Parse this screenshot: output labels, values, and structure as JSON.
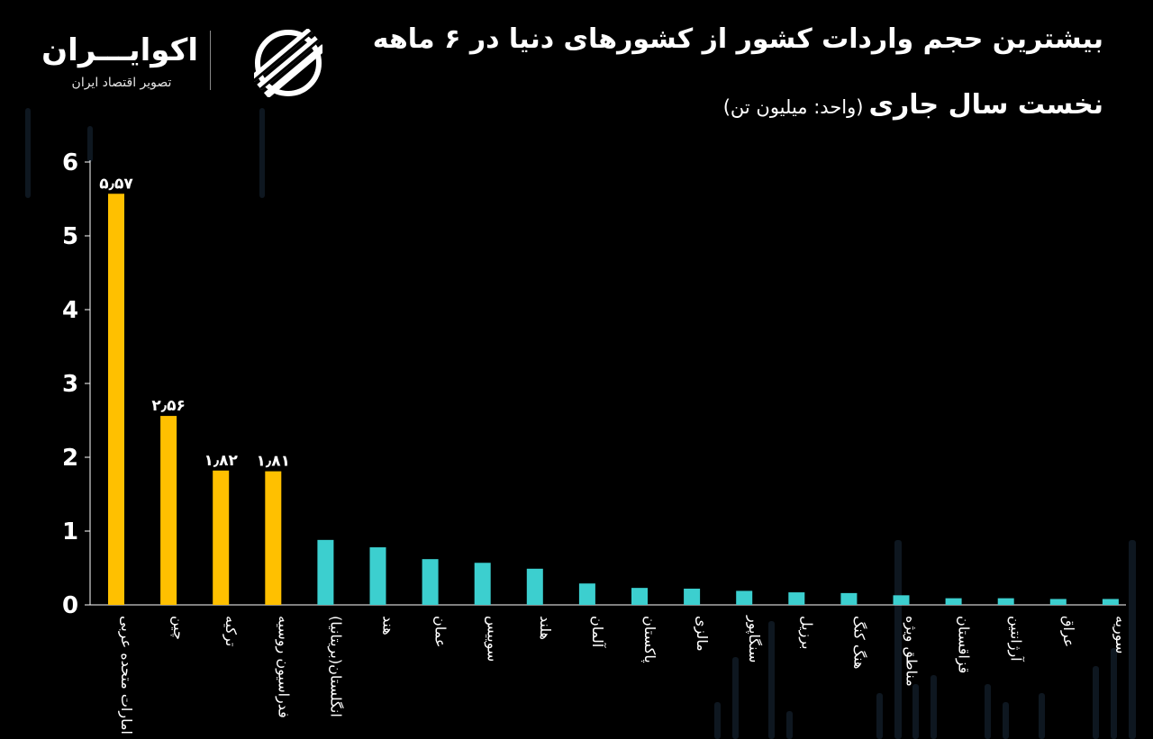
{
  "header": {
    "title": "بیشترین حجم واردات کشور از کشورهای دنیا در ۶ ماهه",
    "subtitle": "نخست سال جاری",
    "unit": "(واحد: میلیون تن)"
  },
  "logo": {
    "name": "اکوایـــران",
    "tagline": "تصویر اقتصاد ایران",
    "icon": "ekoiran-stripes-icon"
  },
  "colors": {
    "background": "#000000",
    "highlight_bar": "#FFC000",
    "regular_bar": "#3CCFCF",
    "axis": "#ffffff",
    "text": "#ffffff"
  },
  "chart_data": {
    "type": "bar",
    "title": "بیشترین حجم واردات کشور از کشورهای دنیا در ۶ ماهه نخست سال جاری",
    "unit": "(واحد: میلیون تن)",
    "xlabel": "",
    "ylabel": "",
    "ylim": [
      0,
      6
    ],
    "yticks": [
      0,
      1,
      2,
      3,
      4,
      5,
      6
    ],
    "ytick_labels": [
      "0",
      "1",
      "2",
      "3",
      "4",
      "5",
      "6"
    ],
    "grid": false,
    "categories": [
      "امارات متحده عربی",
      "چین",
      "ترکیه",
      "فدراسیون روسیه",
      "انگلستان(بریتانیا)",
      "هند",
      "عمان",
      "سوییس",
      "هلند",
      "آلمان",
      "پاکستان",
      "مالزی",
      "سنگاپور",
      "برزیل",
      "هنگ کنگ",
      "مناطق ویژه",
      "قزاقستان",
      "آرژانتین",
      "عراق",
      "سوریه"
    ],
    "values": [
      5.57,
      2.56,
      1.82,
      1.81,
      0.88,
      0.78,
      0.62,
      0.57,
      0.49,
      0.29,
      0.23,
      0.22,
      0.19,
      0.17,
      0.16,
      0.13,
      0.09,
      0.09,
      0.08,
      0.08
    ],
    "highlighted": [
      true,
      true,
      true,
      true,
      false,
      false,
      false,
      false,
      false,
      false,
      false,
      false,
      false,
      false,
      false,
      false,
      false,
      false,
      false,
      false
    ],
    "data_labels": [
      "۵٫۵۷",
      "۲٫۵۶",
      "۱٫۸۲",
      "۱٫۸۱",
      "",
      "",
      "",
      "",
      "",
      "",
      "",
      "",
      "",
      "",
      "",
      "",
      "",
      "",
      "",
      ""
    ]
  }
}
